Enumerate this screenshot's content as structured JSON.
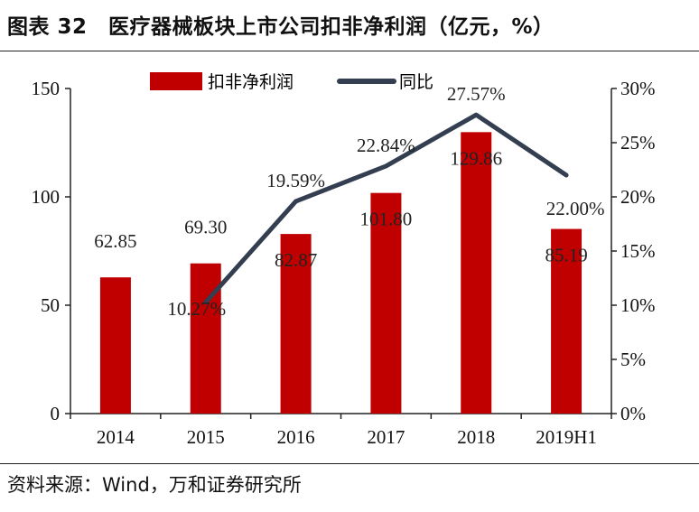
{
  "header": {
    "title": "图表 32　医疗器械板块上市公司扣非净利润（亿元，%）"
  },
  "footer": {
    "source": "资料来源：Wind，万和证券研究所"
  },
  "chart_data": {
    "type": "bar",
    "categories": [
      "2014",
      "2015",
      "2016",
      "2017",
      "2018",
      "2019H1"
    ],
    "series": [
      {
        "name": "扣非净利润",
        "type": "bar",
        "axis": "left",
        "color": "#c00000",
        "values": [
          62.85,
          69.3,
          82.87,
          101.8,
          129.86,
          85.19
        ],
        "labels": [
          "62.85",
          "69.30",
          "82.87",
          "101.80",
          "129.86",
          "85.19"
        ]
      },
      {
        "name": "同比",
        "type": "line",
        "axis": "right",
        "color": "#333f50",
        "values": [
          null,
          10.27,
          19.59,
          22.84,
          27.57,
          22.0
        ],
        "labels": [
          "",
          "10.27%",
          "19.59%",
          "22.84%",
          "27.57%",
          "22.00%"
        ]
      }
    ],
    "y_left": {
      "ylim": [
        0,
        150
      ],
      "ticks": [
        "0",
        "50",
        "100",
        "150"
      ]
    },
    "y_right": {
      "ylim": [
        0,
        30
      ],
      "ticks": [
        "0%",
        "5%",
        "10%",
        "15%",
        "20%",
        "25%",
        "30%"
      ]
    },
    "grid": false,
    "legend": "top"
  }
}
